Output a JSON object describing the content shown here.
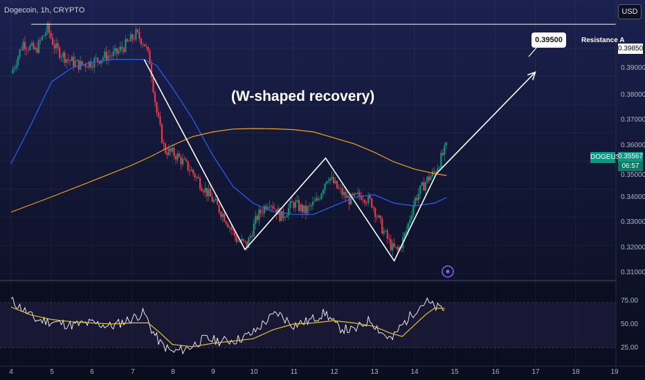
{
  "symbol_title": "Dogecoin, 1h, CRYPTO",
  "currency": "USD",
  "pattern_note": "(W-shaped recovery)",
  "callout_value": "0.39500",
  "resistance_label": "Resistance A",
  "resistance_value": "0.39850",
  "ticker": "DOGEUSD",
  "last_price": "0.35567",
  "countdown": "06:57",
  "colors": {
    "candle_up": "#089981",
    "candle_down": "#f23645",
    "ma_fast": "#2962ff",
    "ma_slow": "#f7a21b",
    "rsi": "#ffffff",
    "rsi_ma": "#e5c431",
    "drawing": "#ffffff"
  },
  "chart_data": [
    {
      "type": "line",
      "title": "",
      "xlabel": "",
      "ylabel": "",
      "x_ticks": [
        "4",
        "5",
        "6",
        "7",
        "8",
        "9",
        "10",
        "11",
        "12",
        "13",
        "14",
        "15",
        "16",
        "17",
        "18",
        "19"
      ],
      "y_ticks": [
        "0.39000",
        "0.38000",
        "0.37000",
        "0.36000",
        "0.35000",
        "0.34000",
        "0.33000",
        "0.32000",
        "0.31000"
      ],
      "ylim": [
        0.3085,
        0.4005
      ],
      "xlim": [
        4,
        19
      ],
      "close_anchors": {
        "x": [
          4.0,
          4.3,
          4.6,
          4.9,
          5.1,
          5.4,
          5.7,
          6.0,
          6.3,
          6.6,
          6.9,
          7.1,
          7.3,
          7.45,
          7.6,
          7.8,
          8.1,
          8.5,
          8.9,
          9.3,
          9.6,
          9.85,
          10.1,
          10.4,
          10.7,
          11.0,
          11.3,
          11.6,
          11.85,
          12.1,
          12.4,
          12.7,
          12.95,
          13.2,
          13.45,
          13.6,
          13.8,
          14.0,
          14.3,
          14.5,
          14.7,
          14.8
        ],
        "y": [
          0.381,
          0.392,
          0.389,
          0.397,
          0.39,
          0.386,
          0.384,
          0.385,
          0.387,
          0.388,
          0.392,
          0.395,
          0.392,
          0.385,
          0.368,
          0.354,
          0.352,
          0.346,
          0.338,
          0.33,
          0.322,
          0.32,
          0.33,
          0.336,
          0.33,
          0.335,
          0.332,
          0.336,
          0.345,
          0.34,
          0.336,
          0.338,
          0.335,
          0.326,
          0.319,
          0.318,
          0.325,
          0.336,
          0.343,
          0.346,
          0.352,
          0.355
        ]
      },
      "series": [
        {
          "kind": "ma_fast",
          "x": [
            4.0,
            4.5,
            5.0,
            5.5,
            6.0,
            6.5,
            7.0,
            7.3,
            7.6,
            8.0,
            8.5,
            9.0,
            9.5,
            10.0,
            10.5,
            11.0,
            11.5,
            12.0,
            12.5,
            13.0,
            13.5,
            14.0,
            14.5,
            14.8
          ],
          "y": [
            0.349,
            0.363,
            0.378,
            0.383,
            0.385,
            0.386,
            0.386,
            0.386,
            0.384,
            0.376,
            0.365,
            0.352,
            0.341,
            0.335,
            0.332,
            0.331,
            0.331,
            0.334,
            0.337,
            0.338,
            0.335,
            0.334,
            0.335,
            0.337
          ]
        },
        {
          "kind": "ma_slow",
          "x": [
            4.0,
            5.0,
            6.0,
            7.0,
            7.5,
            8.0,
            8.5,
            9.0,
            9.5,
            10.0,
            10.5,
            11.0,
            11.5,
            12.0,
            12.5,
            13.0,
            13.5,
            14.0,
            14.5,
            14.8
          ],
          "y": [
            0.3318,
            0.3372,
            0.3428,
            0.3485,
            0.3518,
            0.3555,
            0.3586,
            0.3603,
            0.3613,
            0.3615,
            0.3614,
            0.3611,
            0.3603,
            0.3582,
            0.3561,
            0.3531,
            0.3496,
            0.3471,
            0.3455,
            0.3448
          ]
        }
      ],
      "drawings": {
        "resistance_line": {
          "y": 0.3985,
          "x_from": 4.5,
          "x_to": 19.0
        },
        "w_pattern": {
          "x": [
            7.3,
            9.8,
            11.8,
            13.5,
            14.55
          ],
          "y": [
            0.386,
            0.3185,
            0.351,
            0.3145,
            0.3455
          ]
        },
        "projection_arrow": {
          "from": [
            14.55,
            0.3455
          ],
          "to": [
            17.0,
            0.3815
          ]
        }
      }
    },
    {
      "type": "line",
      "title": "",
      "y_ticks": [
        "75.00",
        "50.00",
        "25.00"
      ],
      "ylim": [
        15,
        87
      ],
      "band": [
        30,
        70
      ],
      "series": [
        {
          "kind": "rsi",
          "x": [
            4.0,
            4.3,
            4.6,
            5.0,
            5.5,
            6.0,
            6.5,
            7.0,
            7.3,
            7.5,
            7.7,
            8.0,
            8.4,
            8.8,
            9.2,
            9.6,
            10.0,
            10.3,
            10.6,
            11.0,
            11.4,
            11.8,
            12.1,
            12.5,
            12.9,
            13.2,
            13.45,
            13.6,
            13.9,
            14.1,
            14.3,
            14.5,
            14.75
          ],
          "y": [
            72,
            64,
            55,
            53,
            50,
            52,
            49,
            56,
            61,
            45,
            34,
            26,
            30,
            38,
            36,
            37,
            43,
            53,
            61,
            50,
            54,
            61,
            48,
            45,
            55,
            43,
            37,
            46,
            58,
            66,
            71,
            66,
            64
          ]
        },
        {
          "kind": "rsi_ma",
          "x": [
            4.0,
            4.5,
            5.0,
            5.5,
            6.0,
            6.5,
            7.0,
            7.4,
            7.7,
            8.0,
            8.5,
            9.0,
            9.5,
            10.0,
            10.5,
            11.0,
            11.5,
            12.0,
            12.5,
            13.0,
            13.4,
            13.7,
            14.0,
            14.3,
            14.5,
            14.75
          ],
          "y": [
            66,
            59,
            55,
            53,
            52,
            51,
            52,
            52,
            43,
            33,
            31,
            34,
            36,
            38,
            46,
            51,
            52,
            54,
            52,
            49,
            43,
            40,
            50,
            60,
            65,
            65
          ]
        }
      ]
    }
  ]
}
